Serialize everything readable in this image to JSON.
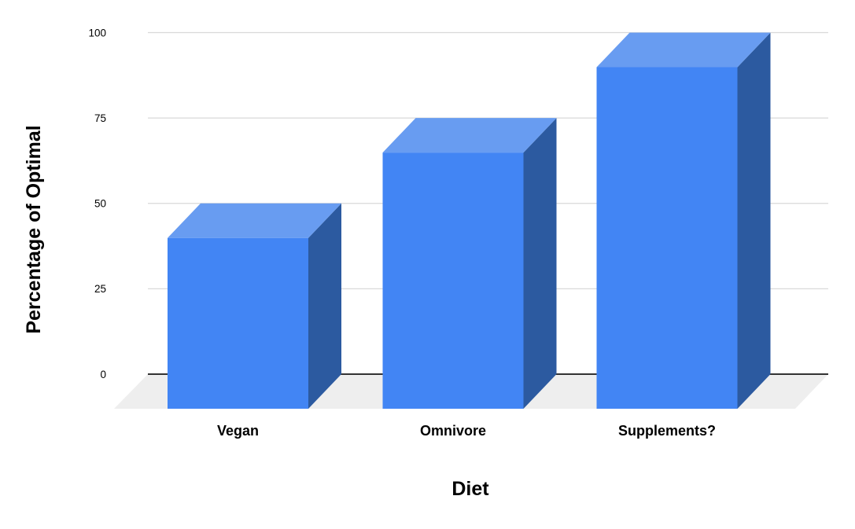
{
  "chart_data": {
    "type": "bar",
    "variant": "3d-column",
    "title": "",
    "xlabel": "Diet",
    "ylabel": "Percentage of Optimal",
    "categories": [
      "Vegan",
      "Omnivore",
      "Supplements?"
    ],
    "values": [
      50,
      75,
      100
    ],
    "yticks": [
      0,
      25,
      50,
      75,
      100
    ],
    "ytick_labels": [
      "0",
      "25",
      "50",
      "75",
      "100"
    ],
    "ylim": [
      0,
      100
    ],
    "grid": true,
    "legend_position": "none"
  },
  "colors": {
    "background": "#ffffff",
    "bar_front": "#4285f4",
    "bar_top": "#689cf1",
    "bar_side": "#2c5aa0",
    "floor": "#eeeeee",
    "gridline": "#d9d9d9",
    "zero_line": "#333333",
    "text": "#000000"
  }
}
